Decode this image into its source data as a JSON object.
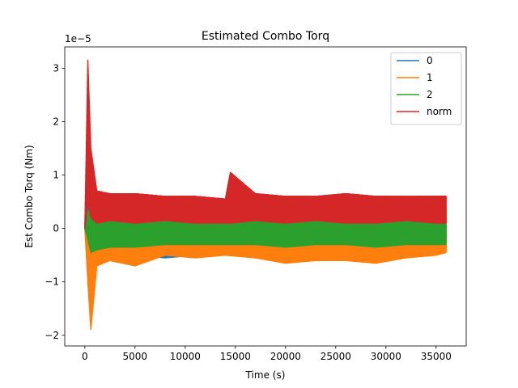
{
  "chart_data": {
    "type": "line",
    "title": "Estimated Combo Torq",
    "xlabel": "Time (s)",
    "ylabel": "Est Combo Torq (Nm)",
    "y_scale_label": "1e−5",
    "y_scale_factor": 1e-05,
    "xlim": [
      -2000,
      38000
    ],
    "ylim": [
      -2.2,
      3.4
    ],
    "xticks": [
      0,
      5000,
      10000,
      15000,
      20000,
      25000,
      30000,
      35000
    ],
    "xtick_labels": [
      "0",
      "5000",
      "10000",
      "15000",
      "20000",
      "25000",
      "30000",
      "35000"
    ],
    "yticks": [
      -2,
      -1,
      0,
      1,
      2,
      3
    ],
    "ytick_labels": [
      "−2",
      "−1",
      "0",
      "1",
      "2",
      "3"
    ],
    "grid": false,
    "legend": "top-right",
    "series": [
      {
        "name": "0",
        "color": "#1f77b4",
        "x": [
          0,
          300,
          600,
          1200,
          2500,
          5000,
          8000,
          11000,
          14000,
          17000,
          20000,
          23000,
          26000,
          29000,
          32000,
          35000,
          36000
        ],
        "upper": [
          0.0,
          2.3,
          0.8,
          0.4,
          0.3,
          0.4,
          0.5,
          0.4,
          0.3,
          0.4,
          0.4,
          0.5,
          0.4,
          0.4,
          0.5,
          0.4,
          0.4
        ],
        "lower": [
          0.0,
          0.0,
          -0.6,
          -0.5,
          -0.5,
          -0.5,
          -0.55,
          -0.5,
          -0.45,
          -0.5,
          -0.55,
          -0.5,
          -0.6,
          -0.55,
          -0.5,
          -0.5,
          -0.4
        ]
      },
      {
        "name": "1",
        "color": "#ff7f0e",
        "x": [
          0,
          300,
          600,
          1200,
          2500,
          5000,
          8000,
          11000,
          14000,
          17000,
          20000,
          23000,
          26000,
          29000,
          32000,
          35000,
          36000
        ],
        "upper": [
          0.0,
          0.3,
          -0.2,
          0.4,
          0.3,
          0.4,
          0.5,
          0.3,
          0.3,
          0.4,
          0.45,
          0.5,
          0.4,
          0.45,
          0.5,
          0.4,
          0.4
        ],
        "lower": [
          0.0,
          -1.0,
          -1.9,
          -0.7,
          -0.6,
          -0.7,
          -0.5,
          -0.55,
          -0.5,
          -0.55,
          -0.65,
          -0.6,
          -0.6,
          -0.65,
          -0.55,
          -0.5,
          -0.45
        ]
      },
      {
        "name": "2",
        "color": "#2ca02c",
        "x": [
          0,
          300,
          600,
          1200,
          2500,
          5000,
          8000,
          11000,
          14000,
          17000,
          20000,
          23000,
          26000,
          29000,
          32000,
          35000,
          36000
        ],
        "upper": [
          0.0,
          0.3,
          0.4,
          0.3,
          0.3,
          0.35,
          0.3,
          0.25,
          0.3,
          0.3,
          0.35,
          0.3,
          0.3,
          0.35,
          0.3,
          0.3,
          0.3
        ],
        "lower": [
          0.0,
          -0.2,
          -0.45,
          -0.4,
          -0.35,
          -0.35,
          -0.3,
          -0.3,
          -0.3,
          -0.3,
          -0.35,
          -0.3,
          -0.3,
          -0.35,
          -0.3,
          -0.3,
          -0.3
        ]
      },
      {
        "name": "norm",
        "color": "#d62728",
        "x": [
          0,
          300,
          600,
          1200,
          2500,
          5000,
          8000,
          11000,
          14000,
          14500,
          17000,
          20000,
          23000,
          26000,
          29000,
          32000,
          35000,
          36000
        ],
        "upper": [
          0.0,
          3.15,
          1.5,
          0.7,
          0.65,
          0.65,
          0.6,
          0.6,
          0.55,
          1.05,
          0.65,
          0.6,
          0.6,
          0.65,
          0.6,
          0.6,
          0.6,
          0.6
        ],
        "lower": [
          0.0,
          0.5,
          0.2,
          0.1,
          0.15,
          0.1,
          0.15,
          0.1,
          0.1,
          0.1,
          0.15,
          0.1,
          0.15,
          0.1,
          0.1,
          0.15,
          0.1,
          0.1
        ]
      }
    ]
  }
}
